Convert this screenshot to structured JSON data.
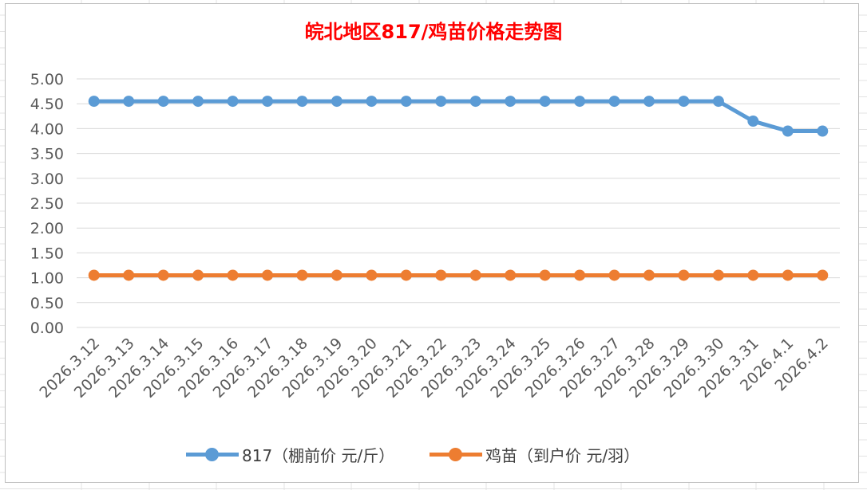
{
  "chart_data": {
    "type": "line",
    "title": "皖北地区817/鸡苗价格走势图",
    "categories": [
      "2026.3.12",
      "2026.3.13",
      "2026.3.14",
      "2026.3.15",
      "2026.3.16",
      "2026.3.17",
      "2026.3.18",
      "2026.3.19",
      "2026.3.20",
      "2026.3.21",
      "2026.3.22",
      "2026.3.23",
      "2026.3.24",
      "2026.3.25",
      "2026.3.26",
      "2026.3.27",
      "2026.3.28",
      "2026.3.29",
      "2026.3.30",
      "2026.3.31",
      "2026.4.1",
      "2026.4.2"
    ],
    "series": [
      {
        "name": "817（棚前价 元/斤）",
        "color": "#5b9bd5",
        "values": [
          4.55,
          4.55,
          4.55,
          4.55,
          4.55,
          4.55,
          4.55,
          4.55,
          4.55,
          4.55,
          4.55,
          4.55,
          4.55,
          4.55,
          4.55,
          4.55,
          4.55,
          4.55,
          4.55,
          4.15,
          3.95,
          3.95
        ]
      },
      {
        "name": "鸡苗（到户价 元/羽）",
        "color": "#ed7d31",
        "values": [
          1.05,
          1.05,
          1.05,
          1.05,
          1.05,
          1.05,
          1.05,
          1.05,
          1.05,
          1.05,
          1.05,
          1.05,
          1.05,
          1.05,
          1.05,
          1.05,
          1.05,
          1.05,
          1.05,
          1.05,
          1.05,
          1.05
        ]
      }
    ],
    "yticks": [
      "0.00",
      "0.50",
      "1.00",
      "1.50",
      "2.00",
      "2.50",
      "3.00",
      "3.50",
      "4.00",
      "4.50",
      "5.00"
    ],
    "ylim": [
      0,
      5
    ],
    "grid": true,
    "legend_position": "bottom",
    "title_color": "#ff0000"
  }
}
